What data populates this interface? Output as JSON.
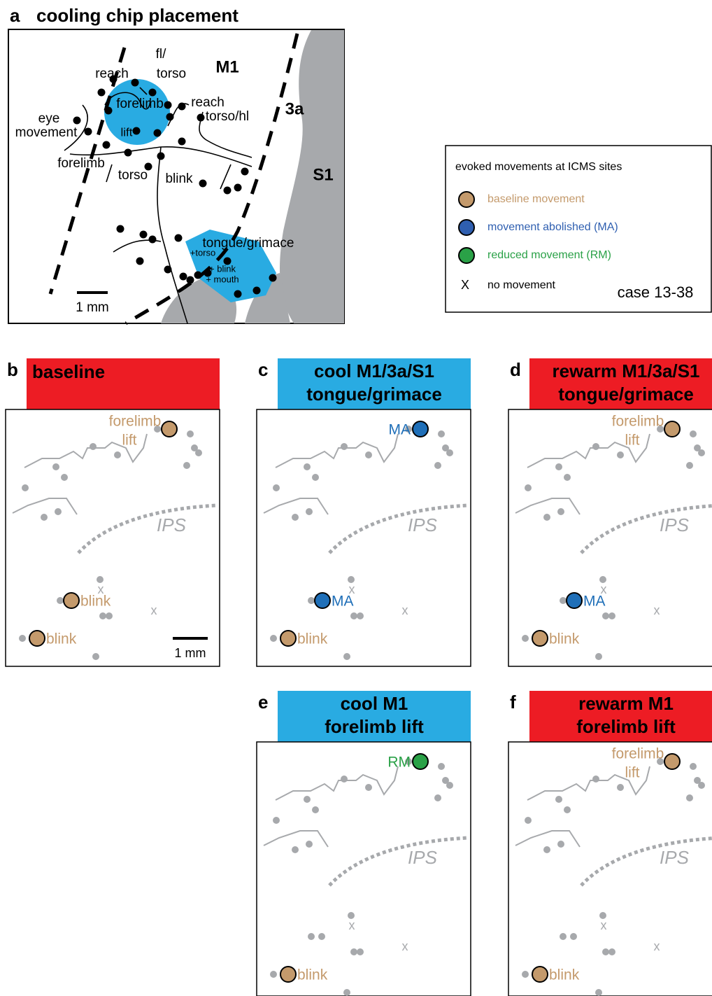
{
  "panel_a": {
    "letter": "a",
    "title": "cooling chip placement",
    "labels": [
      "reach",
      "fl/",
      "torso",
      "M1",
      "reach",
      "torso/hl",
      "eye",
      "movement",
      "forelimb",
      "lift",
      "3a",
      "forelimb",
      "torso",
      "blink",
      "S1",
      "tongue/grimace",
      "+torso",
      "+ blink",
      "+ mouth"
    ],
    "scale_bar": "1 mm"
  },
  "legend": {
    "title": "evoked movements at ICMS sites",
    "items": [
      {
        "label": "baseline movement",
        "color": "#c49a6c"
      },
      {
        "label": "movement abolished (MA)",
        "color": "#2f5fb0"
      },
      {
        "label": "reduced movement (RM)",
        "color": "#2aa147"
      },
      {
        "marker": "X",
        "label": "no movement"
      }
    ],
    "case": "case 13-38"
  },
  "panels": [
    {
      "letter": "b",
      "header": [
        "baseline"
      ],
      "header_color": "#ed1c24",
      "top": {
        "label": [
          "forelimb",
          "lift"
        ],
        "color": "#c49a6c"
      },
      "middle": {
        "label": [
          "blink"
        ],
        "color": "#c49a6c"
      },
      "bottom": {
        "label": [
          "blink"
        ],
        "color": "#c49a6c"
      },
      "region": "IPS",
      "x_marks": [
        "x",
        "x"
      ],
      "scale_bar": "1 mm"
    },
    {
      "letter": "c",
      "header": [
        "cool M1/3a/S1",
        "tongue/grimace"
      ],
      "header_color": "#29abe2",
      "top": {
        "label": [
          "MA"
        ],
        "color": "#1f6fb8"
      },
      "middle": {
        "label": [
          "MA"
        ],
        "color": "#1f6fb8"
      },
      "bottom": {
        "label": [
          "blink"
        ],
        "color": "#c49a6c"
      },
      "region": "IPS",
      "x_marks": [
        "x",
        "x"
      ]
    },
    {
      "letter": "d",
      "header": [
        "rewarm M1/3a/S1",
        "tongue/grimace"
      ],
      "header_color": "#ed1c24",
      "top": {
        "label": [
          "forelimb",
          "lift"
        ],
        "color": "#c49a6c"
      },
      "middle": {
        "label": [
          "MA"
        ],
        "color": "#1f6fb8"
      },
      "bottom": {
        "label": [
          "blink"
        ],
        "color": "#c49a6c"
      },
      "region": "IPS",
      "x_marks": [
        "x",
        "x"
      ]
    },
    {
      "letter": "e",
      "header": [
        "cool M1",
        "forelimb lift"
      ],
      "header_color": "#29abe2",
      "top": {
        "label": [
          "RM"
        ],
        "color": "#2aa147"
      },
      "bottom": {
        "label": [
          "blink"
        ],
        "color": "#c49a6c"
      },
      "region": "IPS",
      "x_marks": [
        "x",
        "x"
      ]
    },
    {
      "letter": "f",
      "header": [
        "rewarm M1",
        "forelimb lift"
      ],
      "header_color": "#ed1c24",
      "top": {
        "label": [
          "forelimb",
          "lift"
        ],
        "color": "#c49a6c"
      },
      "bottom": {
        "label": [
          "blink"
        ],
        "color": "#c49a6c"
      },
      "region": "IPS",
      "x_marks": [
        "x",
        "x"
      ]
    }
  ]
}
